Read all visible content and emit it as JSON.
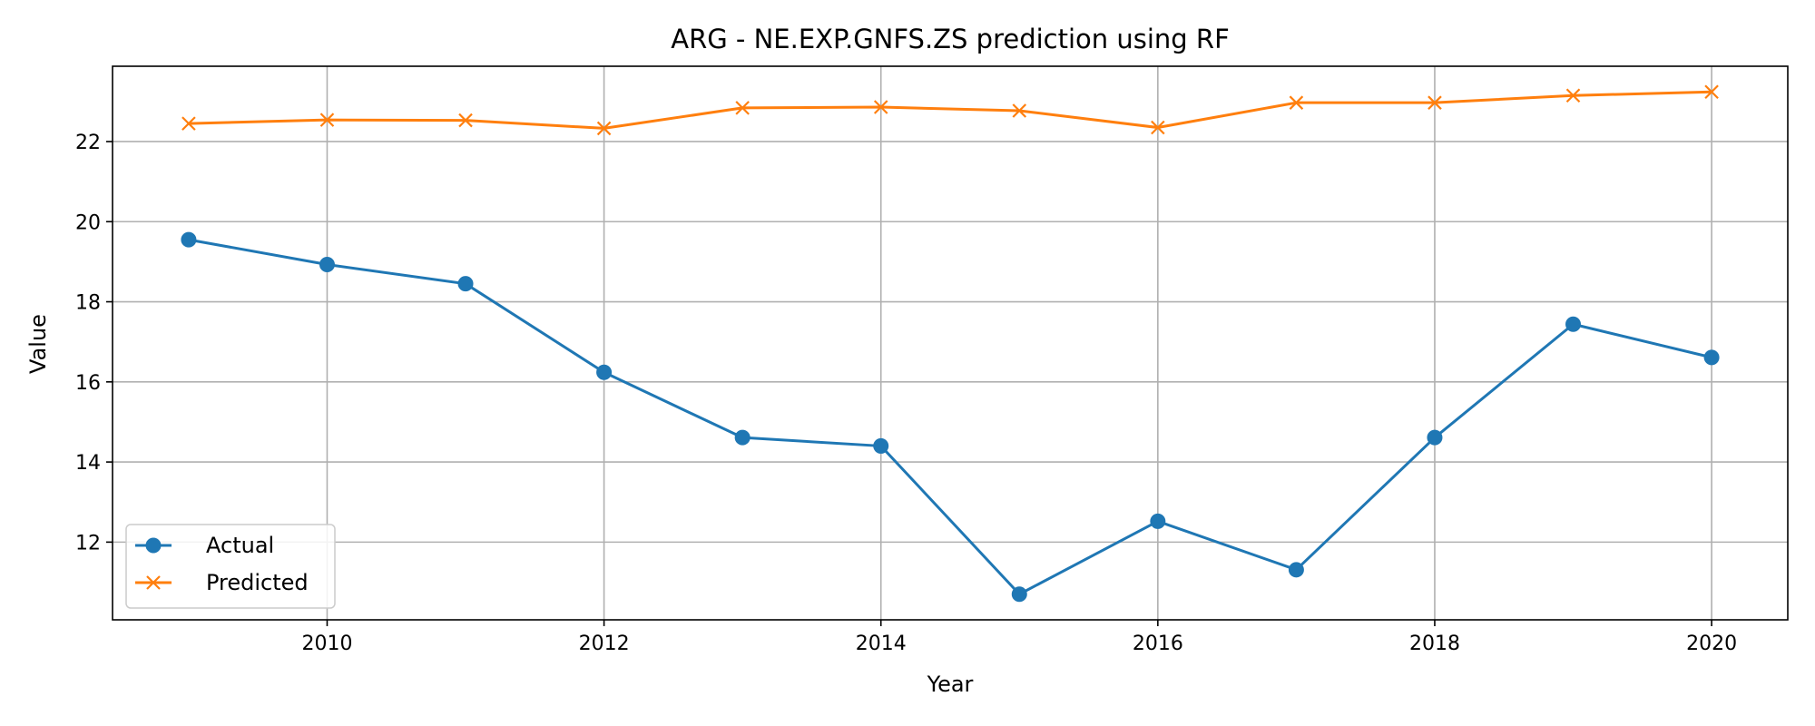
{
  "chart_data": {
    "type": "line",
    "title": "ARG - NE.EXP.GNFS.ZS prediction using RF",
    "xlabel": "Year",
    "ylabel": "Value",
    "x": [
      2009,
      2010,
      2011,
      2012,
      2013,
      2014,
      2015,
      2016,
      2017,
      2018,
      2019,
      2020
    ],
    "series": [
      {
        "name": "Actual",
        "color": "#1f77b4",
        "marker": "circle",
        "values": [
          19.55,
          18.93,
          18.45,
          16.24,
          14.61,
          14.4,
          10.7,
          12.52,
          11.31,
          14.61,
          17.44,
          16.61
        ]
      },
      {
        "name": "Predicted",
        "color": "#ff7f0e",
        "marker": "x",
        "values": [
          22.45,
          22.54,
          22.53,
          22.33,
          22.84,
          22.86,
          22.77,
          22.35,
          22.97,
          22.97,
          23.15,
          23.24
        ]
      }
    ],
    "xticks": [
      2010,
      2012,
      2014,
      2016,
      2018,
      2020
    ],
    "yticks": [
      12,
      14,
      16,
      18,
      20,
      22
    ],
    "xlim": [
      2008.45,
      2020.55
    ],
    "ylim": [
      10.06,
      23.88
    ],
    "grid": true,
    "legend_position": "lower-left"
  }
}
